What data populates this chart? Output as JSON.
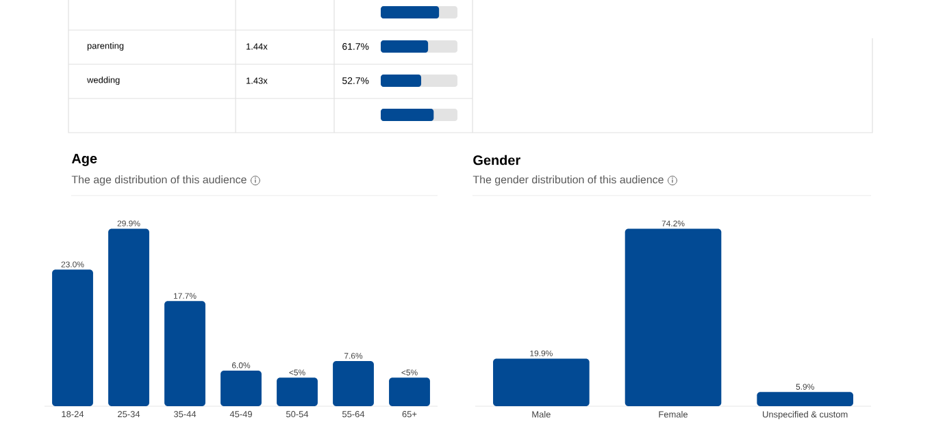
{
  "chart_data": [
    {
      "type": "bar",
      "orientation": "horizontal",
      "categories": [
        null,
        "parenting",
        "wedding",
        null
      ],
      "values": [
        76,
        61.7,
        52.7,
        69
      ],
      "value_labels": [
        null,
        "61.7%",
        "52.7%",
        null
      ],
      "color": "#024a94",
      "xlim": [
        0,
        100
      ],
      "annotations": [
        "1.44x",
        "1.43x"
      ]
    },
    {
      "type": "bar",
      "title": "Age",
      "subtitle": "The age distribution of this audience",
      "categories": [
        "18-24",
        "25-34",
        "35-44",
        "45-49",
        "50-54",
        "55-64",
        "65+"
      ],
      "values": [
        23.0,
        29.9,
        17.7,
        6.0,
        4.8,
        7.6,
        4.8
      ],
      "value_labels": [
        "23.0%",
        "29.9%",
        "17.7%",
        "6.0%",
        "<5%",
        "7.6%",
        "<5%"
      ],
      "color": "#024a94"
    },
    {
      "type": "bar",
      "title": "Gender",
      "subtitle": "The gender distribution of this audience",
      "categories": [
        "Male",
        "Female",
        "Unspecified & custom"
      ],
      "values": [
        19.9,
        74.2,
        5.9
      ],
      "value_labels": [
        "19.9%",
        "74.2%",
        "5.9%"
      ],
      "color": "#024a94"
    }
  ]
}
